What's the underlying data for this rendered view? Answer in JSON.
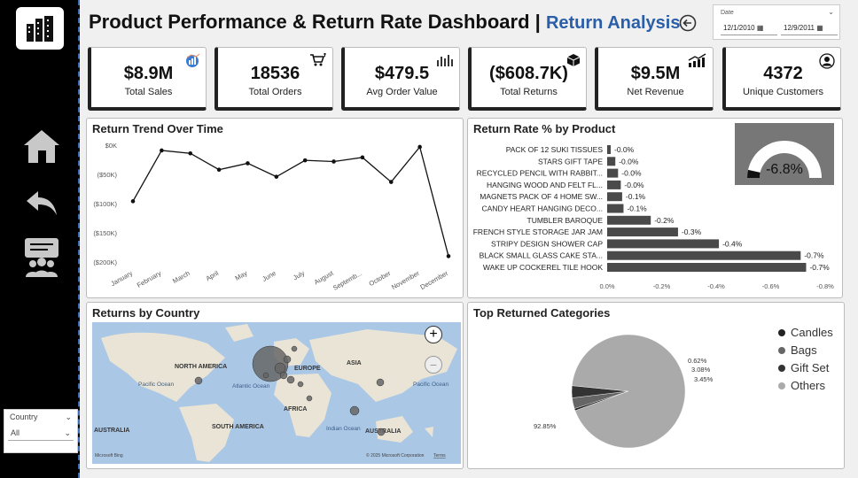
{
  "header": {
    "title": "Product Performance & Return Rate Dashboard",
    "separator": "|",
    "subtitle": "Return Analysis"
  },
  "date_filter": {
    "label": "Date",
    "start": "12/1/2010",
    "end": "12/9/2011"
  },
  "kpis": [
    {
      "value": "$8.9M",
      "label": "Total Sales",
      "icon": "sales-chart-icon"
    },
    {
      "value": "18536",
      "label": "Total Orders",
      "icon": "cart-icon"
    },
    {
      "value": "$479.5",
      "label": "Avg Order Value",
      "icon": "bar-chart-icon"
    },
    {
      "value": "($608.7K)",
      "label": "Total Returns",
      "icon": "box-icon"
    },
    {
      "value": "$9.5M",
      "label": "Net Revenue",
      "icon": "trend-up-icon"
    },
    {
      "value": "4372",
      "label": "Unique Customers",
      "icon": "user-icon"
    }
  ],
  "slicer": {
    "label": "Country",
    "value": "All"
  },
  "return_trend": {
    "title": "Return Trend Over Time",
    "chart_data": {
      "type": "line",
      "categories": [
        "January",
        "February",
        "March",
        "April",
        "May",
        "June",
        "July",
        "August",
        "Septemb...",
        "October",
        "November",
        "December"
      ],
      "values": [
        -96,
        -9,
        -14,
        -42,
        -31,
        -54,
        -26,
        -28,
        -21,
        -63,
        -3,
        -190
      ],
      "ytick_labels": [
        "$0K",
        "($50K)",
        "($100K)",
        "($150K)",
        "($200K)"
      ],
      "ylim": [
        -200,
        0
      ]
    }
  },
  "return_rate": {
    "title": "Return Rate % by Product",
    "gauge_value": "-6.8%",
    "gauge_fraction": 0.07,
    "chart_data": {
      "type": "bar",
      "categories": [
        "PACK OF 12 SUKI TISSUES",
        "STARS GIFT TAPE",
        "RECYCLED PENCIL WITH RABBIT...",
        "HANGING WOOD AND FELT FL...",
        "MAGNETS PACK OF 4 HOME SW...",
        "CANDY HEART HANGING DECO...",
        "TUMBLER BAROQUE",
        "FRENCH STYLE STORAGE JAR JAM",
        "STRIPY DESIGN SHOWER CAP",
        "BLACK SMALL GLASS CAKE STA...",
        "WAKE UP COCKEREL TILE HOOK"
      ],
      "values": [
        -0.01,
        -0.03,
        -0.04,
        -0.05,
        -0.055,
        -0.06,
        -0.16,
        -0.26,
        -0.41,
        -0.71,
        -0.73
      ],
      "data_labels": [
        "-0.0%",
        "-0.0%",
        "-0.0%",
        "-0.0%",
        "-0.1%",
        "-0.1%",
        "-0.2%",
        "-0.3%",
        "-0.4%",
        "-0.7%",
        "-0.7%"
      ],
      "xtick_labels": [
        "0.0%",
        "-0.2%",
        "-0.4%",
        "-0.6%",
        "-0.8%"
      ],
      "xlim": [
        0,
        -0.8
      ]
    }
  },
  "map_panel": {
    "title": "Returns by Country",
    "labels": {
      "na": "NORTH AMERICA",
      "eu": "EUROPE",
      "asia": "ASIA",
      "africa": "AFRICA",
      "sa": "SOUTH AMERICA",
      "aus": "AUSTRALIA",
      "aus2": "AUSTRALIA",
      "pac1": "Pacific Ocean",
      "atl": "Atlantic Ocean",
      "ind": "Indian Ocean",
      "pac2": "Pacific Ocean"
    },
    "attribution": "© 2025 Microsoft Corporation",
    "terms": "Terms",
    "bing": "Microsoft Bing",
    "zoom_in": "+",
    "zoom_out": "−"
  },
  "categories_panel": {
    "title": "Top Returned Categories",
    "chart_data": {
      "type": "pie",
      "labels": [
        "Candles",
        "Bags",
        "Gift Set",
        "Others"
      ],
      "values": [
        0.62,
        3.08,
        3.45,
        92.85
      ],
      "data_labels": [
        "0.62%",
        "3.08%",
        "3.45%",
        "92.85%"
      ],
      "colors": [
        "#222222",
        "#666666",
        "#333333",
        "#aaaaaa"
      ]
    }
  }
}
